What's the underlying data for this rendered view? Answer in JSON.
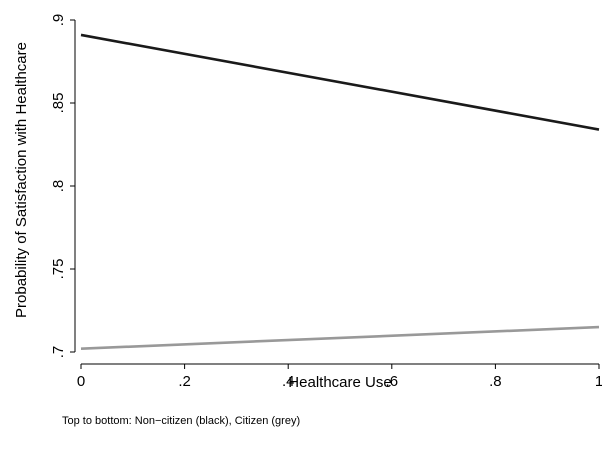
{
  "chart_data": {
    "type": "line",
    "xlabel": "Healthcare Use",
    "ylabel": "Probability of Satisfaction with Healthcare",
    "xlim": [
      0,
      1
    ],
    "ylim": [
      0.7,
      0.9
    ],
    "xticks": [
      0,
      0.2,
      0.4,
      0.6,
      0.8,
      1
    ],
    "xtick_labels": [
      "0",
      ".2",
      ".4",
      ".6",
      ".8",
      "1"
    ],
    "yticks": [
      0.7,
      0.75,
      0.8,
      0.85,
      0.9
    ],
    "ytick_labels": [
      ".7",
      ".75",
      ".8",
      ".85",
      ".9"
    ],
    "grid": false,
    "series": [
      {
        "x": [
          0,
          1
        ],
        "y": [
          0.891,
          0.834
        ],
        "color": "#1a1a1a"
      },
      {
        "x": [
          0,
          1
        ],
        "y": [
          0.702,
          0.715
        ],
        "color": "#999999"
      }
    ]
  },
  "note": "Top to bottom: Non−citizen (black), Citizen (grey)"
}
